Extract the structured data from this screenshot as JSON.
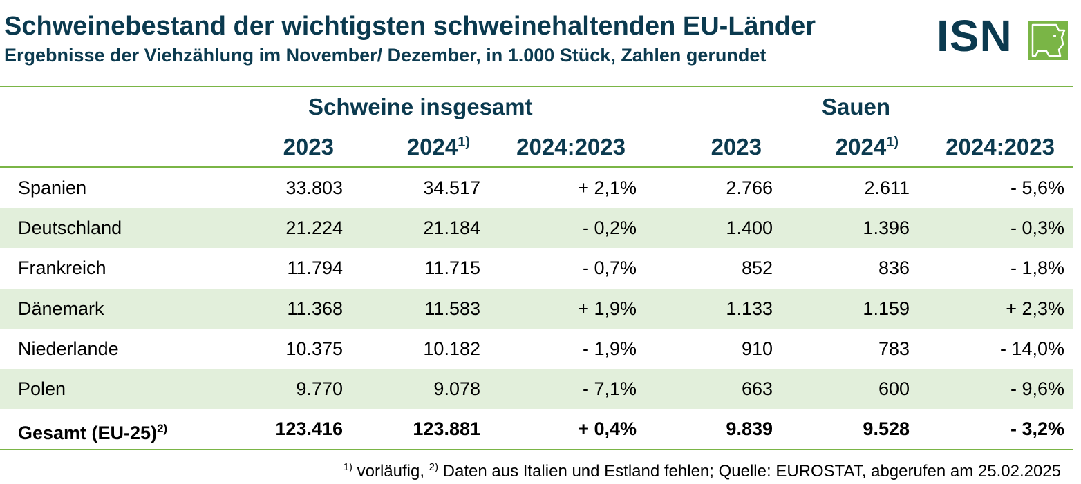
{
  "header": {
    "title": "Schweinebestand der wichtigsten schweinehaltenden EU-Länder",
    "subtitle": "Ergebnisse der Viehzählung im November/ Dezember, in 1.000 Stück, Zahlen gerundet"
  },
  "logo": {
    "text": "ISN",
    "color": "#0b3a4f",
    "accent": "#7ab546"
  },
  "table": {
    "group_headers": {
      "all_pigs": "Schweine insgesamt",
      "sows": "Sauen"
    },
    "columns": {
      "y2023": "2023",
      "y2024": "2024",
      "y2024_note": "1)",
      "change": "2024:2023"
    },
    "rows": [
      {
        "country": "Spanien",
        "pigs_2023": "33.803",
        "pigs_2024": "34.517",
        "pigs_change": "+ 2,1%",
        "sows_2023": "2.766",
        "sows_2024": "2.611",
        "sows_change": "- 5,6%"
      },
      {
        "country": "Deutschland",
        "pigs_2023": "21.224",
        "pigs_2024": "21.184",
        "pigs_change": "- 0,2%",
        "sows_2023": "1.400",
        "sows_2024": "1.396",
        "sows_change": "- 0,3%"
      },
      {
        "country": "Frankreich",
        "pigs_2023": "11.794",
        "pigs_2024": "11.715",
        "pigs_change": "- 0,7%",
        "sows_2023": "852",
        "sows_2024": "836",
        "sows_change": "- 1,8%"
      },
      {
        "country": "Dänemark",
        "pigs_2023": "11.368",
        "pigs_2024": "11.583",
        "pigs_change": "+ 1,9%",
        "sows_2023": "1.133",
        "sows_2024": "1.159",
        "sows_change": "+ 2,3%"
      },
      {
        "country": "Niederlande",
        "pigs_2023": "10.375",
        "pigs_2024": "10.182",
        "pigs_change": "- 1,9%",
        "sows_2023": "910",
        "sows_2024": "783",
        "sows_change": "- 14,0%"
      },
      {
        "country": "Polen",
        "pigs_2023": "9.770",
        "pigs_2024": "9.078",
        "pigs_change": "- 7,1%",
        "sows_2023": "663",
        "sows_2024": "600",
        "sows_change": "- 9,6%"
      }
    ],
    "total": {
      "label": "Gesamt (EU-25)",
      "label_note": "2)",
      "pigs_2023": "123.416",
      "pigs_2024": "123.881",
      "pigs_change": "+ 0,4%",
      "sows_2023": "9.839",
      "sows_2024": "9.528",
      "sows_change": "- 3,2%"
    }
  },
  "footnote": {
    "note1_mark": "1)",
    "note1_text": " vorläufig, ",
    "note2_mark": "2)",
    "note2_text": " Daten aus Italien und Estland fehlen; Quelle: EUROSTAT, abgerufen am 25.02.2025"
  },
  "colors": {
    "heading": "#0b3a4f",
    "rule": "#7ab546",
    "row_shade": "#e2efdb"
  }
}
